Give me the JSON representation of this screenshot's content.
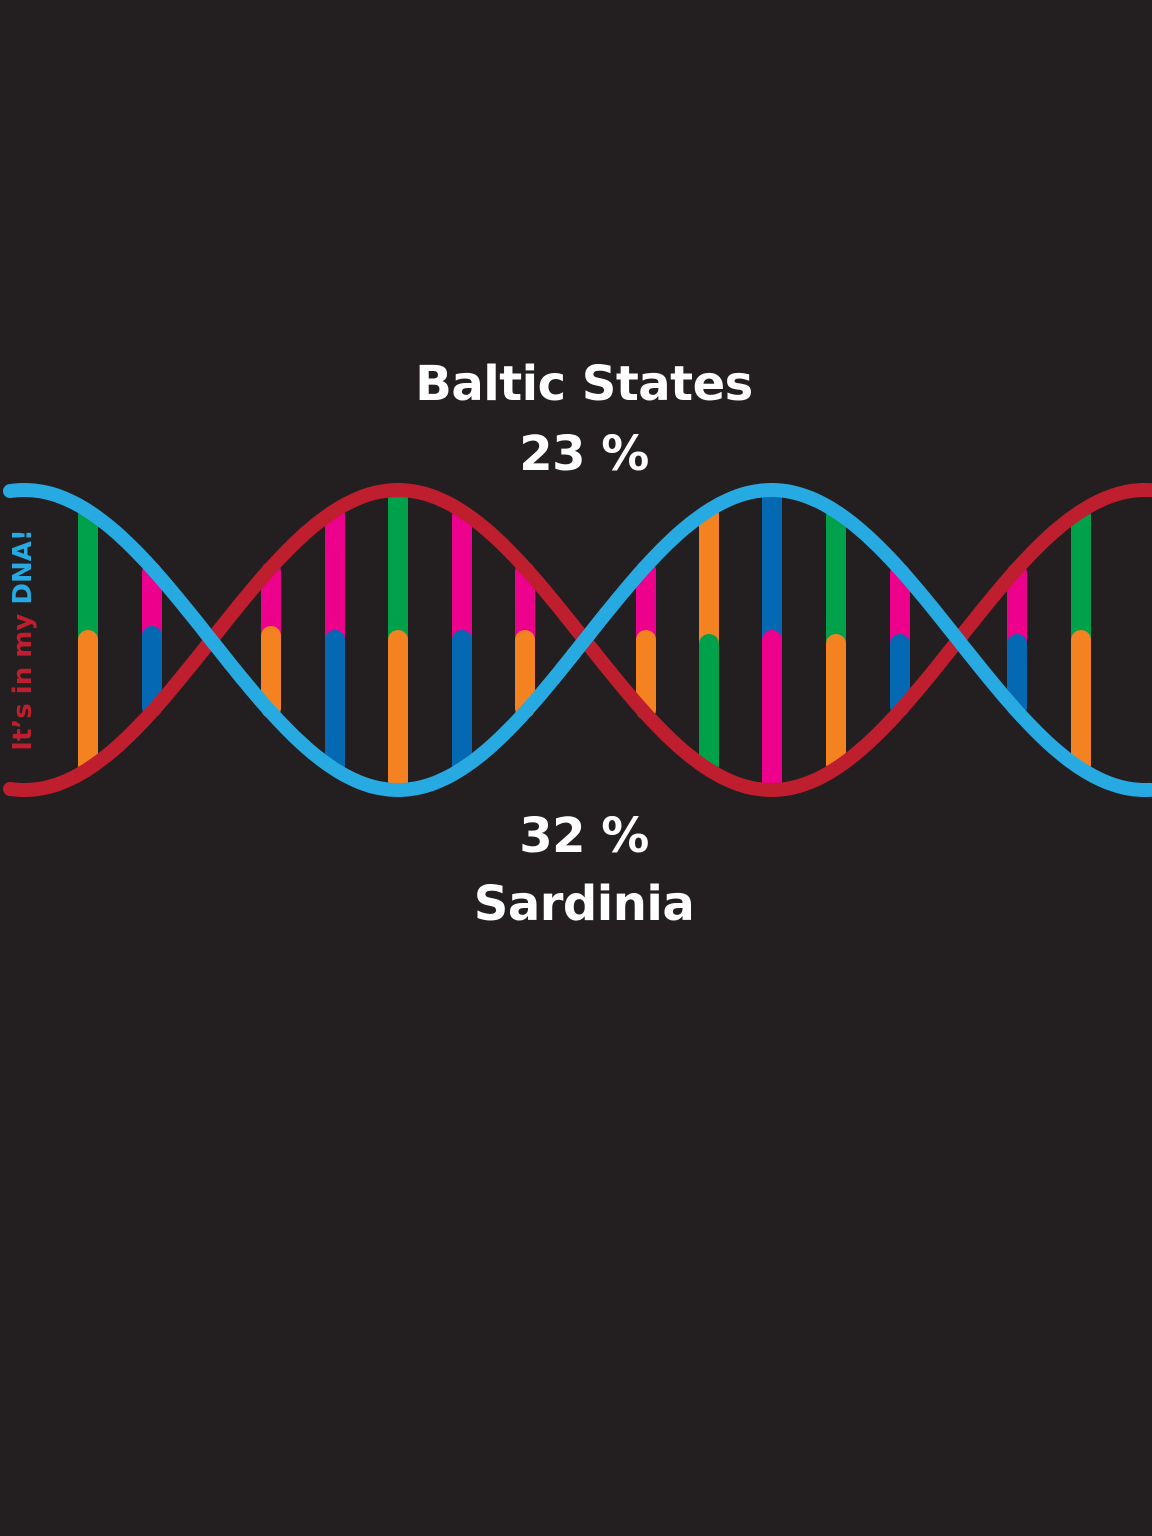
{
  "top": {
    "region": "Baltic States",
    "percent": "23 %"
  },
  "bottom": {
    "percent": "32 %",
    "region": "Sardinia"
  },
  "tagline": {
    "part1": "It’s in my ",
    "part2": "DNA!"
  },
  "colors": {
    "background": "#231f20",
    "text": "#ffffff",
    "strand_red": "#be1e2d",
    "strand_blue": "#27aae1",
    "green": "#00a14b",
    "orange": "#f58220",
    "magenta": "#ec008c",
    "navy": "#0568b3"
  },
  "base_pairs": [
    [
      "green",
      "orange"
    ],
    [
      "magenta",
      "navy"
    ],
    [
      "magenta",
      "orange"
    ],
    [
      "magenta",
      "navy"
    ],
    [
      "green",
      "orange"
    ],
    [
      "magenta",
      "navy"
    ],
    [
      "magenta",
      "orange"
    ],
    [
      "magenta",
      "orange"
    ],
    [
      "orange",
      "green"
    ],
    [
      "navy",
      "magenta"
    ],
    [
      "green",
      "orange"
    ],
    [
      "magenta",
      "navy"
    ],
    [
      "magenta",
      "navy"
    ],
    [
      "green",
      "orange"
    ]
  ]
}
